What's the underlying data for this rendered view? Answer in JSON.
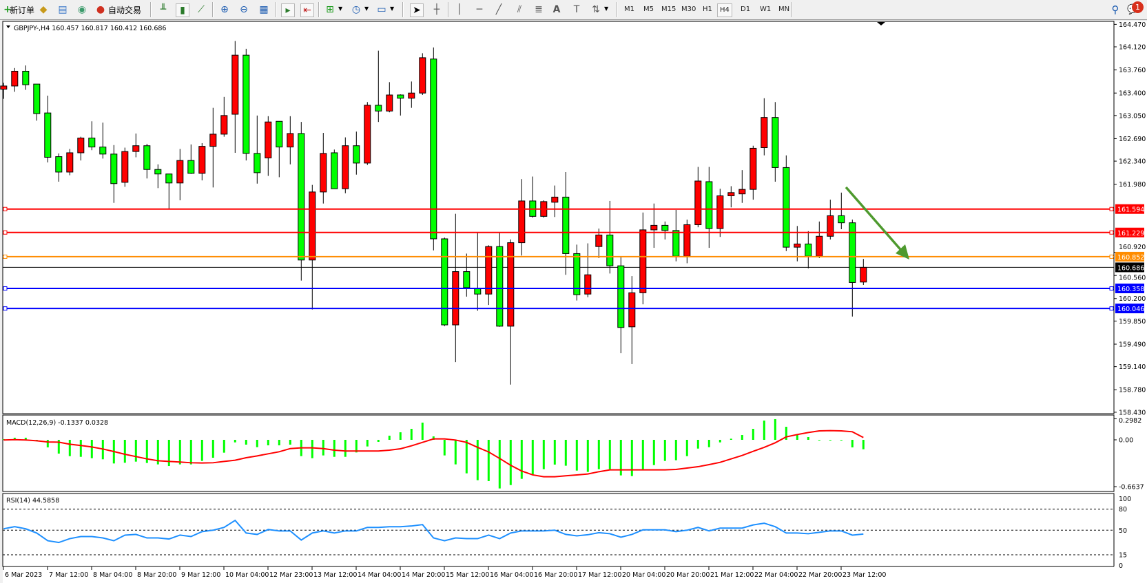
{
  "toolbar": {
    "new_order_label": "新订单",
    "auto_trading_label": "自动交易",
    "timeframes": [
      "M1",
      "M5",
      "M15",
      "M30",
      "H1",
      "H4",
      "D1",
      "W1",
      "MN"
    ],
    "active_timeframe": "H4",
    "notification_count": "1"
  },
  "chart_header": "GBPJPY-,H4  160.457 160.817 160.412 160.686",
  "macd_header": "MACD(12,26,9) -0.1337 0.0328",
  "rsi_header": "RSI(14) 44.5858",
  "colors": {
    "bull": "#FF0000",
    "bear": "#00FF00",
    "macd_hist": "#00FF00",
    "macd_signal": "#FF0000",
    "rsi": "#1E90FF",
    "arrow": "#4E9A2E"
  },
  "chart_data": [
    {
      "type": "candlestick",
      "symbol": "GBPJPY-",
      "timeframe": "H4",
      "ylim": [
        158.43,
        164.47
      ],
      "price_ticks": [
        "164.470",
        "164.120",
        "163.760",
        "163.400",
        "163.050",
        "162.690",
        "162.340",
        "161.980",
        "160.920",
        "160.560",
        "160.200",
        "159.850",
        "159.490",
        "159.140",
        "158.780",
        "158.430"
      ],
      "time_labels": [
        "6 Mar 2023",
        "7 Mar 12:00",
        "8 Mar 04:00",
        "8 Mar 20:00",
        "9 Mar 12:00",
        "10 Mar 04:00",
        "12 Mar 23:00",
        "13 Mar 12:00",
        "14 Mar 04:00",
        "14 Mar 20:00",
        "15 Mar 12:00",
        "16 Mar 04:00",
        "16 Mar 20:00",
        "17 Mar 12:00",
        "20 Mar 04:00",
        "20 Mar 20:00",
        "21 Mar 12:00",
        "22 Mar 04:00",
        "22 Mar 20:00",
        "23 Mar 12:00"
      ],
      "ohlc": [
        [
          163.46,
          163.56,
          163.31,
          163.51
        ],
        [
          163.51,
          163.79,
          163.42,
          163.74
        ],
        [
          163.74,
          163.83,
          163.45,
          163.53
        ],
        [
          163.54,
          163.54,
          162.97,
          163.08
        ],
        [
          163.09,
          163.36,
          162.32,
          162.4
        ],
        [
          162.41,
          162.46,
          162.02,
          162.17
        ],
        [
          162.17,
          162.53,
          162.12,
          162.47
        ],
        [
          162.47,
          162.72,
          162.35,
          162.7
        ],
        [
          162.7,
          162.96,
          162.51,
          162.56
        ],
        [
          162.56,
          162.94,
          162.38,
          162.45
        ],
        [
          162.45,
          162.59,
          161.69,
          161.99
        ],
        [
          162.01,
          162.55,
          161.94,
          162.49
        ],
        [
          162.49,
          162.77,
          162.4,
          162.58
        ],
        [
          162.58,
          162.61,
          162.07,
          162.21
        ],
        [
          162.21,
          162.29,
          161.92,
          162.14
        ],
        [
          162.14,
          162.14,
          161.6,
          162.0
        ],
        [
          162.0,
          162.53,
          161.73,
          162.35
        ],
        [
          162.35,
          162.6,
          162.14,
          162.15
        ],
        [
          162.15,
          162.62,
          162.04,
          162.57
        ],
        [
          162.57,
          163.17,
          161.93,
          162.76
        ],
        [
          162.76,
          163.34,
          162.72,
          163.05
        ],
        [
          163.07,
          164.21,
          162.47,
          163.99
        ],
        [
          163.99,
          164.09,
          162.35,
          162.46
        ],
        [
          162.46,
          163.05,
          161.99,
          162.16
        ],
        [
          162.39,
          163.04,
          162.11,
          162.95
        ],
        [
          162.96,
          162.96,
          162.09,
          162.56
        ],
        [
          162.56,
          163.04,
          162.29,
          162.77
        ],
        [
          162.77,
          162.95,
          160.48,
          160.8
        ],
        [
          160.8,
          161.97,
          160.03,
          161.86
        ],
        [
          161.86,
          162.78,
          161.68,
          162.46
        ],
        [
          162.47,
          162.52,
          161.91,
          161.91
        ],
        [
          161.91,
          162.71,
          161.84,
          162.58
        ],
        [
          162.58,
          162.8,
          162.13,
          162.31
        ],
        [
          162.31,
          163.26,
          162.28,
          163.21
        ],
        [
          163.21,
          164.06,
          162.95,
          163.12
        ],
        [
          163.12,
          163.57,
          163.1,
          163.37
        ],
        [
          163.37,
          163.38,
          163.05,
          163.32
        ],
        [
          163.32,
          163.58,
          163.17,
          163.4
        ],
        [
          163.4,
          164.02,
          163.37,
          163.95
        ],
        [
          163.93,
          164.11,
          160.95,
          161.13
        ],
        [
          161.13,
          161.15,
          159.77,
          159.79
        ],
        [
          159.79,
          161.52,
          159.21,
          160.62
        ],
        [
          160.62,
          160.9,
          160.23,
          160.37
        ],
        [
          160.36,
          161.22,
          160.01,
          160.27
        ],
        [
          160.27,
          161.03,
          160.1,
          161.01
        ],
        [
          161.01,
          161.22,
          159.76,
          159.77
        ],
        [
          159.77,
          161.12,
          158.86,
          161.07
        ],
        [
          161.07,
          162.06,
          160.87,
          161.72
        ],
        [
          161.72,
          162.1,
          161.46,
          161.48
        ],
        [
          161.48,
          161.73,
          161.46,
          161.71
        ],
        [
          161.7,
          161.96,
          161.47,
          161.78
        ],
        [
          161.78,
          162.17,
          160.57,
          160.9
        ],
        [
          160.9,
          161.04,
          160.17,
          160.26
        ],
        [
          160.27,
          161.06,
          160.22,
          160.57
        ],
        [
          161.01,
          161.29,
          160.83,
          161.19
        ],
        [
          161.19,
          161.72,
          160.59,
          160.71
        ],
        [
          160.71,
          160.85,
          159.35,
          159.75
        ],
        [
          159.76,
          160.55,
          159.18,
          160.29
        ],
        [
          160.29,
          161.54,
          160.11,
          161.27
        ],
        [
          161.27,
          161.68,
          160.99,
          161.34
        ],
        [
          161.34,
          161.4,
          161.12,
          161.26
        ],
        [
          161.26,
          161.58,
          160.78,
          160.86
        ],
        [
          160.86,
          161.43,
          160.75,
          161.35
        ],
        [
          161.35,
          162.25,
          161.31,
          162.03
        ],
        [
          162.02,
          162.25,
          160.99,
          161.29
        ],
        [
          161.29,
          161.91,
          161.16,
          161.8
        ],
        [
          161.8,
          161.95,
          161.62,
          161.85
        ],
        [
          161.83,
          162.2,
          161.69,
          161.9
        ],
        [
          161.9,
          162.58,
          161.74,
          162.54
        ],
        [
          162.55,
          163.32,
          162.43,
          163.02
        ],
        [
          163.02,
          163.26,
          162.02,
          162.24
        ],
        [
          162.24,
          162.43,
          160.94,
          161.0
        ],
        [
          161.0,
          161.33,
          160.78,
          161.05
        ],
        [
          161.05,
          161.25,
          160.67,
          160.86
        ],
        [
          160.86,
          161.4,
          160.83,
          161.17
        ],
        [
          161.17,
          161.74,
          161.12,
          161.49
        ],
        [
          161.49,
          161.85,
          161.28,
          161.38
        ],
        [
          161.38,
          161.43,
          159.92,
          160.45
        ],
        [
          160.457,
          160.817,
          160.412,
          160.686
        ]
      ],
      "current_price": {
        "value": 160.686,
        "label": "160.686"
      },
      "horizontal_lines": [
        {
          "value": 161.594,
          "label": "161.594",
          "color": "#FF0000"
        },
        {
          "value": 161.229,
          "label": "161.229",
          "color": "#FF0000"
        },
        {
          "value": 160.852,
          "label": "160.852",
          "color": "#FF8C00"
        },
        {
          "value": 160.358,
          "label": "160.358",
          "color": "#0000FF"
        },
        {
          "value": 160.046,
          "label": "160.046",
          "color": "#0000FF"
        }
      ]
    },
    {
      "type": "bar",
      "name": "MACD(12,26,9)",
      "ylim": [
        -0.6637,
        0.2982
      ],
      "ticks": [
        "0.2982",
        "0.00",
        "-0.6637"
      ],
      "histogram": [
        0.01,
        0.03,
        0.03,
        -0.02,
        -0.107,
        -0.195,
        -0.231,
        -0.241,
        -0.26,
        -0.276,
        -0.335,
        -0.325,
        -0.309,
        -0.328,
        -0.348,
        -0.371,
        -0.348,
        -0.348,
        -0.299,
        -0.254,
        -0.182,
        -0.036,
        -0.068,
        -0.104,
        -0.078,
        -0.078,
        -0.068,
        -0.231,
        -0.26,
        -0.221,
        -0.241,
        -0.241,
        -0.179,
        -0.094,
        -0.029,
        0.059,
        0.107,
        0.156,
        0.244,
        0.049,
        -0.221,
        -0.348,
        -0.475,
        -0.572,
        -0.585,
        -0.689,
        -0.641,
        -0.553,
        -0.491,
        -0.416,
        -0.351,
        -0.367,
        -0.436,
        -0.455,
        -0.416,
        -0.416,
        -0.504,
        -0.514,
        -0.416,
        -0.358,
        -0.299,
        -0.289,
        -0.231,
        -0.124,
        -0.104,
        -0.036,
        0.016,
        0.068,
        0.156,
        0.273,
        0.293,
        0.185,
        0.08,
        0.039,
        -0.007,
        -0.007,
        -0.005,
        -0.107,
        -0.1337
      ],
      "signal": [
        -0.003,
        0.003,
        -0.003,
        -0.013,
        -0.03,
        -0.033,
        -0.062,
        -0.081,
        -0.101,
        -0.13,
        -0.166,
        -0.205,
        -0.237,
        -0.27,
        -0.296,
        -0.306,
        -0.315,
        -0.325,
        -0.328,
        -0.325,
        -0.306,
        -0.289,
        -0.254,
        -0.228,
        -0.198,
        -0.169,
        -0.124,
        -0.114,
        -0.114,
        -0.124,
        -0.146,
        -0.159,
        -0.159,
        -0.159,
        -0.159,
        -0.146,
        -0.127,
        -0.085,
        -0.036,
        0.013,
        0.013,
        -0.003,
        -0.036,
        -0.107,
        -0.172,
        -0.264,
        -0.361,
        -0.442,
        -0.497,
        -0.523,
        -0.523,
        -0.51,
        -0.497,
        -0.484,
        -0.452,
        -0.426,
        -0.426,
        -0.426,
        -0.426,
        -0.426,
        -0.426,
        -0.42,
        -0.4,
        -0.381,
        -0.351,
        -0.319,
        -0.27,
        -0.221,
        -0.163,
        -0.107,
        -0.042,
        0.042,
        0.075,
        0.104,
        0.127,
        0.13,
        0.127,
        0.114,
        0.0328
      ]
    },
    {
      "type": "line",
      "name": "RSI(14)",
      "ylim": [
        0,
        100
      ],
      "ticks": [
        "100",
        "80",
        "50",
        "15",
        "0"
      ],
      "levels": [
        80,
        50,
        15
      ],
      "values": [
        52,
        55,
        52,
        46,
        35,
        32.5,
        38,
        41,
        41,
        39,
        35,
        43,
        44,
        39,
        39,
        37.5,
        43,
        41,
        48,
        50,
        54,
        64,
        46,
        44,
        51,
        49,
        49,
        36,
        46,
        49,
        46,
        49,
        49,
        54,
        54,
        55,
        55,
        56,
        58,
        39,
        35,
        39,
        38,
        38,
        43,
        38,
        46,
        49,
        49,
        49,
        50,
        44,
        42,
        43.5,
        46.5,
        45,
        40,
        44,
        50.5,
        50.5,
        50.5,
        48,
        50,
        54,
        49,
        53,
        53,
        53,
        57.5,
        60,
        55,
        46,
        46,
        45,
        47,
        49,
        49,
        43,
        44.5858
      ]
    }
  ]
}
